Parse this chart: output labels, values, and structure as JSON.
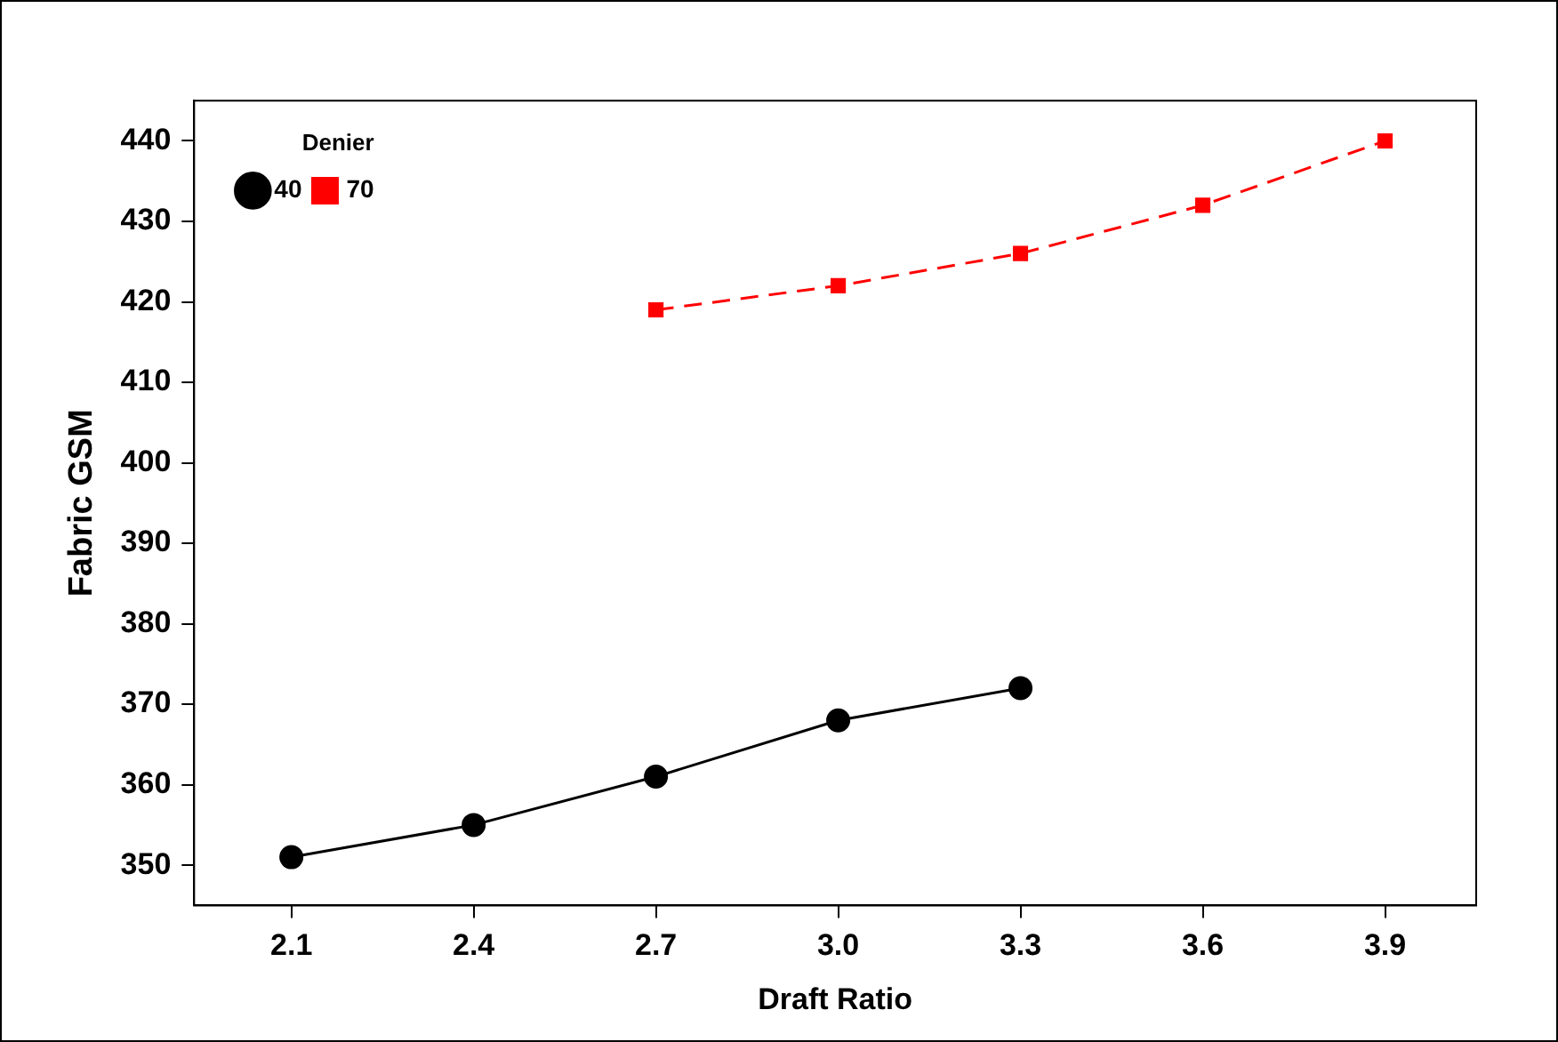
{
  "chart_data": {
    "type": "line",
    "xlabel": "Draft Ratio",
    "ylabel": "Fabric GSM",
    "legend_title": "Denier",
    "xlim": [
      1.94,
      4.05
    ],
    "xticks": [
      2.1,
      2.4,
      2.7,
      {
        "value": 3,
        "label": "3.0"
      },
      3.3,
      3.6,
      3.9
    ],
    "ylim": [
      345,
      445
    ],
    "yticks": [
      350,
      360,
      370,
      380,
      390,
      400,
      410,
      420,
      430,
      440
    ],
    "grid": false,
    "legend": "top left",
    "series": [
      {
        "name": "40",
        "color": "#000000",
        "marker": "circle",
        "line_style": "solid",
        "x": [
          2.1,
          2.4,
          2.7,
          3.0,
          3.3
        ],
        "values": [
          351,
          355,
          361,
          368,
          372
        ]
      },
      {
        "name": "70",
        "color": "#ff0000",
        "marker": "square",
        "line_style": "dashed",
        "x": [
          2.7,
          3.0,
          3.3,
          3.6,
          3.9
        ],
        "values": [
          419,
          422,
          426,
          432,
          440
        ]
      }
    ]
  }
}
